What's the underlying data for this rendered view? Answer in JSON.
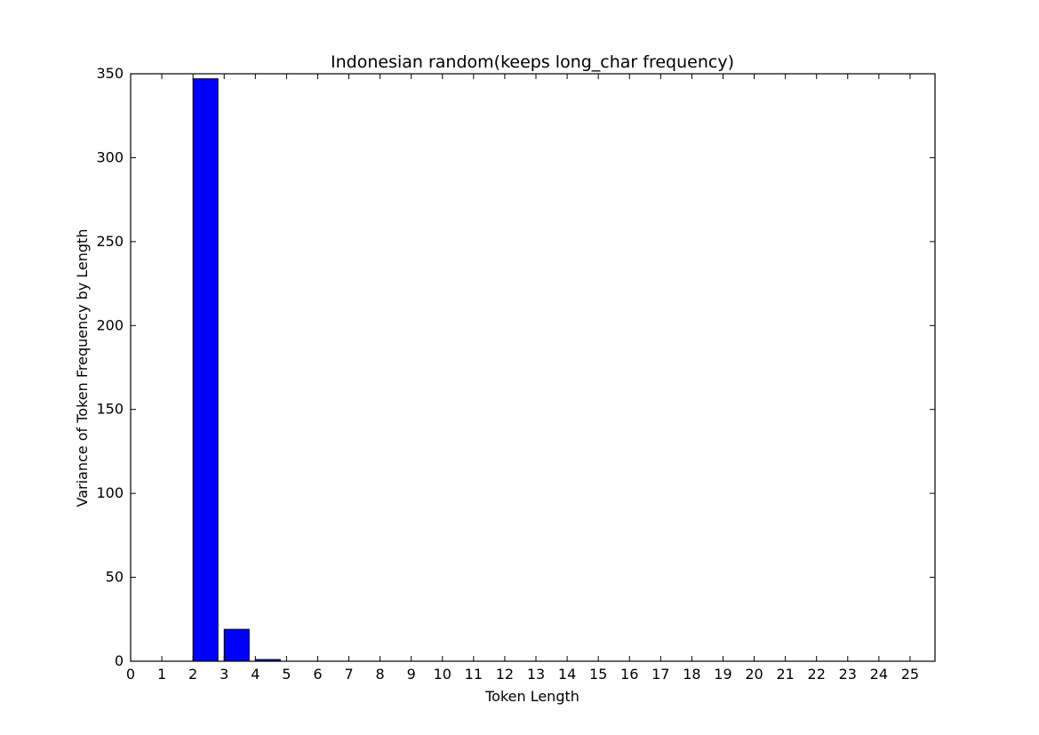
{
  "chart_data": {
    "type": "bar",
    "title": "Indonesian random(keeps long_char frequency)",
    "xlabel": "Token Length",
    "ylabel": "Variance of Token Frequency by Length",
    "x_ticks": [
      "0",
      "1",
      "2",
      "3",
      "4",
      "5",
      "6",
      "7",
      "8",
      "9",
      "10",
      "11",
      "12",
      "13",
      "14",
      "15",
      "16",
      "17",
      "18",
      "19",
      "20",
      "21",
      "22",
      "23",
      "24",
      "25"
    ],
    "y_ticks": [
      0,
      50,
      100,
      150,
      200,
      250,
      300,
      350
    ],
    "xlim": [
      0,
      25.8
    ],
    "ylim": [
      0,
      350
    ],
    "bar_color": "#0000ff",
    "bars": [
      {
        "x": 2,
        "value": 347
      },
      {
        "x": 3,
        "value": 19
      },
      {
        "x": 4,
        "value": 1
      },
      {
        "x": 5,
        "value": 0
      },
      {
        "x": 6,
        "value": 0
      },
      {
        "x": 7,
        "value": 0
      },
      {
        "x": 8,
        "value": 0
      },
      {
        "x": 9,
        "value": 0
      },
      {
        "x": 10,
        "value": 0
      },
      {
        "x": 11,
        "value": 0
      },
      {
        "x": 12,
        "value": 0
      },
      {
        "x": 13,
        "value": 0
      },
      {
        "x": 14,
        "value": 0
      },
      {
        "x": 15,
        "value": 0
      },
      {
        "x": 16,
        "value": 0
      },
      {
        "x": 17,
        "value": 0
      },
      {
        "x": 18,
        "value": 0
      },
      {
        "x": 19,
        "value": 0
      },
      {
        "x": 20,
        "value": 0
      },
      {
        "x": 21,
        "value": 0
      },
      {
        "x": 22,
        "value": 0
      },
      {
        "x": 23,
        "value": 0
      },
      {
        "x": 24,
        "value": 0
      }
    ]
  }
}
